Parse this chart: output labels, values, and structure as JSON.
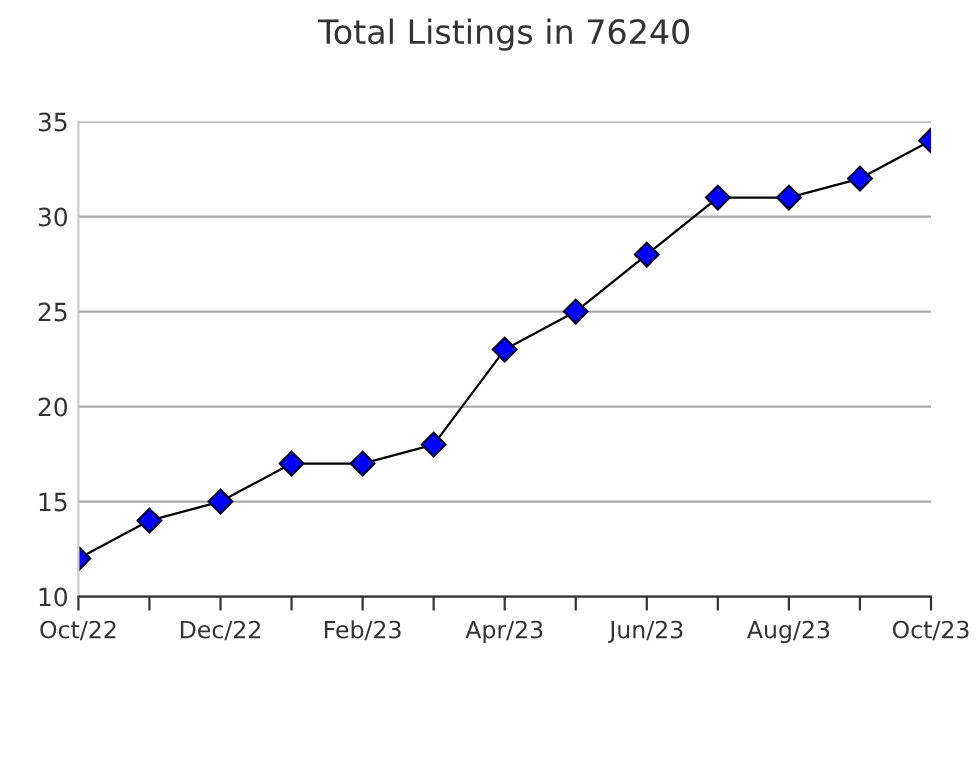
{
  "chart_data": {
    "type": "line",
    "title": "Total Listings in 76240",
    "categories": [
      "Oct/22",
      null,
      "Dec/22",
      null,
      "Feb/23",
      null,
      "Apr/23",
      null,
      "Jun/23",
      null,
      "Aug/23",
      null,
      "Oct/23"
    ],
    "series": [
      {
        "color": "#0000ff",
        "values": [
          12,
          14,
          15,
          17,
          17,
          18,
          23,
          25,
          28,
          31,
          31,
          32,
          34
        ]
      }
    ],
    "ylim": [
      10,
      35
    ],
    "yticks": [
      10,
      15,
      20,
      25,
      30,
      35
    ],
    "grid": "y",
    "marker": "diamond",
    "line_style": "solid",
    "legend": false
  }
}
